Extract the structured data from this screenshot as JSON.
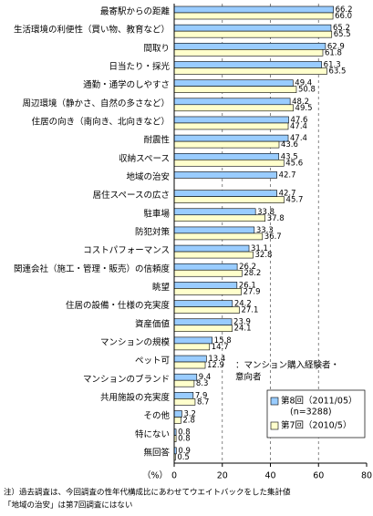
{
  "chart_data": {
    "type": "hbar",
    "categories": [
      "最寄駅からの距離",
      "生活環境の利便性（買い物、教育など）",
      "間取り",
      "日当たり・採光",
      "通勤・通学のしやすさ",
      "周辺環境（静かさ、自然の多さなど）",
      "住居の向き（南向き、北向きなど）",
      "耐震性",
      "収納スペース",
      "地域の治安",
      "居住スペースの広さ",
      "駐車場",
      "防犯対策",
      "コストパフォーマンス",
      "関連会社（施工・管理・販売）の信頼度",
      "眺望",
      "住居の設備・仕様の充実度",
      "資産価値",
      "マンションの規模",
      "ペット可",
      "マンションのブランド",
      "共用施設の充実度",
      "その他",
      "特にない",
      "無回答"
    ],
    "series": [
      {
        "name": "第8回（2011/05）",
        "name_note": "(n=3288)",
        "color": "#99ccff",
        "values": [
          66.2,
          65.2,
          62.9,
          61.3,
          49.4,
          48.2,
          47.6,
          47.4,
          43.5,
          42.7,
          42.7,
          33.8,
          33.3,
          31.1,
          26.2,
          26.1,
          24.2,
          23.9,
          15.8,
          13.4,
          9.4,
          7.9,
          3.2,
          0.8,
          0.9
        ],
        "value_labels": [
          "66.2",
          "65.2",
          "62.9",
          "61.3",
          "49.4",
          "48.2",
          "47.6",
          "47.4",
          "43.5",
          "42.7",
          "42.7",
          "33.8",
          "33.3",
          "31.1",
          "26.2",
          "26.1",
          "24.2",
          "23.9",
          "15.8",
          "13.4",
          "9.4",
          "7.9",
          "3.2",
          "0.8",
          "0.9"
        ]
      },
      {
        "name": "第7回（2010/5）",
        "color": "#ffffcc",
        "values": [
          66.0,
          65.5,
          61.8,
          63.5,
          50.8,
          49.5,
          47.4,
          43.6,
          45.6,
          null,
          45.7,
          37.8,
          36.7,
          32.8,
          28.2,
          27.9,
          27.1,
          24.1,
          14.7,
          12.9,
          8.3,
          8.7,
          2.8,
          0.8,
          0.5
        ],
        "value_labels": [
          "66.0",
          "65.5",
          "61.8",
          "63.5",
          "50.8",
          "49.5",
          "47.4",
          "43.6",
          "45.6",
          null,
          "45.7",
          "37.8",
          "36.7",
          "32.8",
          "28.2",
          "27.9",
          "27.1",
          "24.1",
          "14.7",
          "12.9",
          "8.3",
          "8.7",
          "2.8",
          "0.8",
          "0.5"
        ]
      }
    ],
    "xlim": [
      0,
      80
    ],
    "xticks": [
      0,
      20,
      40,
      60,
      80
    ],
    "grid": true,
    "unit_label": "（%）",
    "legend_note": [
      "：マンション購入経験者・",
      "意向者"
    ],
    "footnotes": [
      "注）過去調査は、今回調査の性年代構成比にあわせてウエイトバックをした集計値",
      "「地域の治安」は第7回調査にはない"
    ]
  }
}
